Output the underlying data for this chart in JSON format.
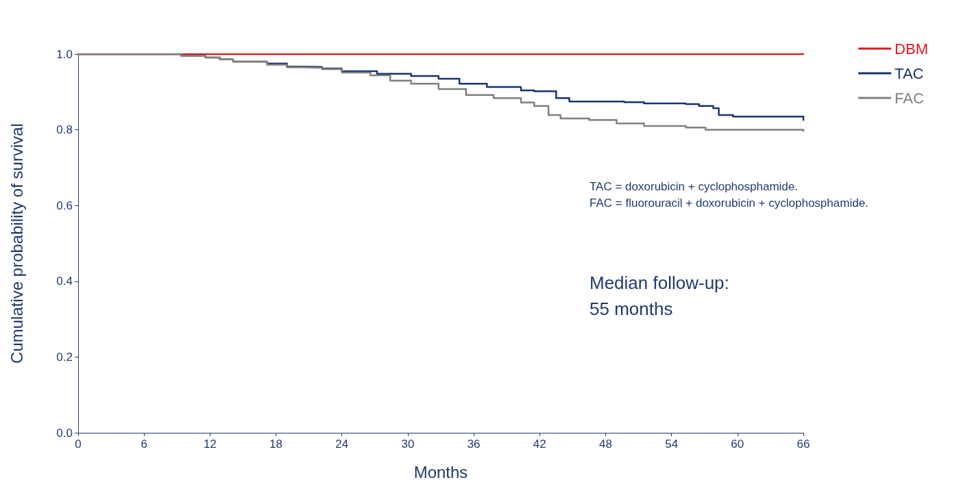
{
  "chart_data": {
    "type": "step",
    "xlabel": "Months",
    "ylabel": "Cumulative probability of survival",
    "xlim": [
      0,
      66
    ],
    "xticks": [
      0,
      6,
      12,
      18,
      24,
      30,
      36,
      42,
      48,
      54,
      60,
      66
    ],
    "ylim": [
      0,
      1
    ],
    "yticks": [
      {
        "value": 0,
        "label": "0.0"
      },
      {
        "value": 0.2,
        "label": "0.2"
      },
      {
        "value": 0.4,
        "label": "0.4"
      },
      {
        "value": 0.6,
        "label": "0.6"
      },
      {
        "value": 0.8,
        "label": "0.8"
      },
      {
        "value": 1,
        "label": "1.0"
      }
    ],
    "grid": false,
    "legend": "top right",
    "marker": "none",
    "series": [
      {
        "name": "DBM",
        "color": "#e0161c",
        "x": [
          0,
          66
        ],
        "values": [
          1,
          1
        ]
      },
      {
        "name": "TAC",
        "color": "#17336e",
        "x": [
          0,
          8.5,
          9.4,
          11.6,
          12.9,
          14.1,
          17.2,
          19,
          20.3,
          22.2,
          24,
          27.2,
          30.3,
          32.8,
          34.7,
          37.2,
          40.3,
          41.5,
          43.5,
          44.7,
          49.7,
          51.5,
          55.3,
          56.5,
          57.8,
          58.3,
          59.6,
          66
        ],
        "values": [
          1,
          1,
          0.995,
          0.991,
          0.986,
          0.98,
          0.975,
          0.967,
          0.966,
          0.962,
          0.955,
          0.948,
          0.942,
          0.935,
          0.922,
          0.913,
          0.904,
          0.902,
          0.884,
          0.875,
          0.873,
          0.87,
          0.868,
          0.863,
          0.857,
          0.839,
          0.835,
          0.826
        ]
      },
      {
        "name": "FAC",
        "color": "#7f7f7f",
        "x": [
          0,
          8.5,
          9.4,
          11.6,
          12.9,
          14.1,
          17.2,
          19,
          20.3,
          22.2,
          24,
          26.6,
          28.4,
          30.3,
          32.8,
          35.3,
          37.8,
          40.3,
          41.5,
          42.8,
          43.9,
          46.5,
          49,
          51.5,
          55.3,
          57.1,
          66
        ],
        "values": [
          1,
          1,
          0.995,
          0.991,
          0.986,
          0.98,
          0.972,
          0.965,
          0.964,
          0.96,
          0.951,
          0.944,
          0.93,
          0.922,
          0.908,
          0.892,
          0.884,
          0.872,
          0.863,
          0.839,
          0.83,
          0.826,
          0.817,
          0.81,
          0.806,
          0.8,
          0.797
        ]
      }
    ],
    "annotations": [
      "TAC = doxorubicin + cyclophosphamide.",
      "FAC = fluorouracil + doxorubicin + cyclophosphamide.",
      "Median follow-up:",
      "55 months"
    ]
  }
}
